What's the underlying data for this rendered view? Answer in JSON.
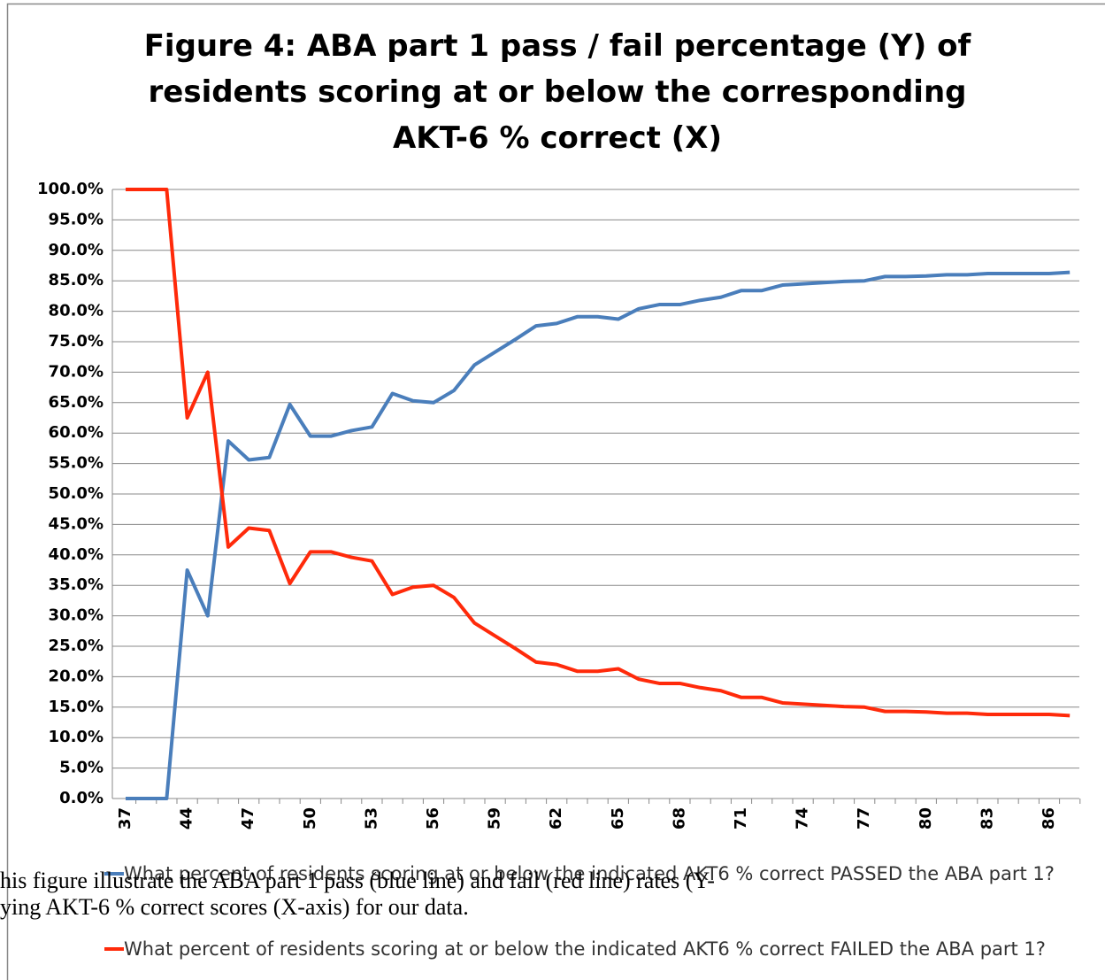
{
  "chart_data": {
    "type": "line",
    "title": "Figure 4: ABA part 1 pass / fail percentage (Y) of residents scoring at or below the corresponding AKT-6 % correct (X)",
    "categories": [
      "37",
      null,
      null,
      "44",
      null,
      null,
      "47",
      null,
      null,
      "50",
      null,
      null,
      "53",
      null,
      null,
      "56",
      null,
      null,
      "59",
      null,
      null,
      "62",
      null,
      null,
      "65",
      null,
      null,
      "68",
      null,
      null,
      "71",
      null,
      null,
      "74",
      null,
      null,
      "77",
      null,
      null,
      "80",
      null,
      null,
      "83",
      null,
      null,
      "86",
      null
    ],
    "series": [
      {
        "name": "What percent of residents scoring at or below the indicated AKT6 % correct PASSED the ABA part 1?",
        "color": "#4a7ebb",
        "values": [
          0,
          0,
          0,
          37.5,
          30,
          58.7,
          55.6,
          56,
          64.7,
          59.5,
          59.5,
          60.4,
          61,
          66.5,
          65.3,
          65,
          67,
          71.2,
          73.3,
          75.4,
          77.6,
          78,
          79.1,
          79.1,
          78.7,
          80.4,
          81.1,
          81.1,
          81.8,
          82.3,
          83.4,
          83.4,
          84.3,
          84.5,
          84.7,
          84.9,
          85,
          85.7,
          85.7,
          85.8,
          86,
          86,
          86.2,
          86.2,
          86.2,
          86.2,
          86.4
        ]
      },
      {
        "name": "What percent of residents scoring at or below the indicated AKT6 % correct FAILED the ABA part 1?",
        "color": "#ff2a0a",
        "values": [
          100,
          100,
          100,
          62.5,
          70,
          41.3,
          44.4,
          44,
          35.3,
          40.5,
          40.5,
          39.6,
          39,
          33.5,
          34.7,
          35,
          33,
          28.8,
          26.7,
          24.6,
          22.4,
          22,
          20.9,
          20.9,
          21.3,
          19.6,
          18.9,
          18.9,
          18.2,
          17.7,
          16.6,
          16.6,
          15.7,
          15.5,
          15.3,
          15.1,
          15,
          14.3,
          14.3,
          14.2,
          14,
          14,
          13.8,
          13.8,
          13.8,
          13.8,
          13.6
        ]
      }
    ],
    "ylim": [
      0,
      100
    ],
    "yticks": [
      {
        "value": 0,
        "label": "0.0%"
      },
      {
        "value": 5,
        "label": "5.0%"
      },
      {
        "value": 10,
        "label": "10.0%"
      },
      {
        "value": 15,
        "label": "15.0%"
      },
      {
        "value": 20,
        "label": "20.0%"
      },
      {
        "value": 25,
        "label": "25.0%"
      },
      {
        "value": 30,
        "label": "30.0%"
      },
      {
        "value": 35,
        "label": "35.0%"
      },
      {
        "value": 40,
        "label": "40.0%"
      },
      {
        "value": 45,
        "label": "45.0%"
      },
      {
        "value": 50,
        "label": "50.0%"
      },
      {
        "value": 55,
        "label": "55.0%"
      },
      {
        "value": 60,
        "label": "60.0%"
      },
      {
        "value": 65,
        "label": "65.0%"
      },
      {
        "value": 70,
        "label": "70.0%"
      },
      {
        "value": 75,
        "label": "75.0%"
      },
      {
        "value": 80,
        "label": "80.0%"
      },
      {
        "value": 85,
        "label": "85.0%"
      },
      {
        "value": 90,
        "label": "90.0%"
      },
      {
        "value": 95,
        "label": "95.0%"
      },
      {
        "value": 100,
        "label": "100.0%"
      }
    ],
    "grid": true
  },
  "caption": [
    "his figure illustrate the ABA part 1 pass (blue line) and fail (red line) rates (Y-",
    "ying AKT-6 % correct scores (X-axis) for our data."
  ]
}
